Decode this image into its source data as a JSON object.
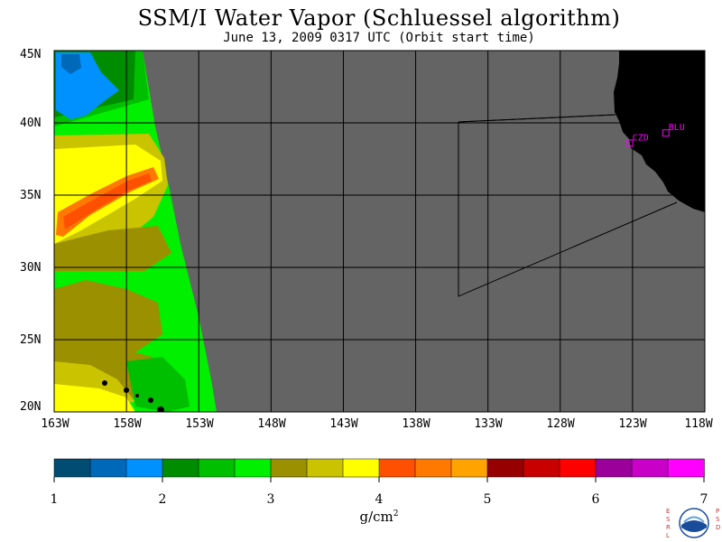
{
  "title": "SSM/I Water Vapor (Schluessel algorithm)",
  "subtitle": "June 13, 2009  0317 UTC  (Orbit start time)",
  "axes": {
    "lat_labels": [
      "45N",
      "40N",
      "35N",
      "30N",
      "25N",
      "20N"
    ],
    "lon_labels": [
      "163W",
      "158W",
      "153W",
      "148W",
      "143W",
      "138W",
      "133W",
      "128W",
      "123W",
      "118W"
    ],
    "lat_range": [
      20,
      45
    ],
    "lon_range": [
      -163,
      -118
    ]
  },
  "stations": [
    {
      "id": "CZD",
      "lat": 38.6,
      "lon": -123.2
    },
    {
      "id": "BLU",
      "lat": 39.3,
      "lon": -120.7
    }
  ],
  "colors": {
    "no_data": "#646464",
    "land": "#000000",
    "grid": "#000000",
    "station": "#ff00ff"
  },
  "colorbar": {
    "units": "g/cm",
    "units_exp": "2",
    "tick_labels": [
      "1",
      "2",
      "3",
      "4",
      "5",
      "6",
      "7"
    ],
    "range": [
      1,
      7
    ],
    "colors": [
      "#004c73",
      "#0068b8",
      "#0091ff",
      "#008c00",
      "#00bf00",
      "#00f000",
      "#9b9000",
      "#c9c300",
      "#ffff00",
      "#ff4f00",
      "#ff7800",
      "#ffa300",
      "#960000",
      "#c80000",
      "#ff0000",
      "#9b009b",
      "#c800c8",
      "#ff00ff"
    ]
  },
  "logo": {
    "left_letters": "ESRL",
    "right_letters": "PSD",
    "name": "NOAA"
  }
}
